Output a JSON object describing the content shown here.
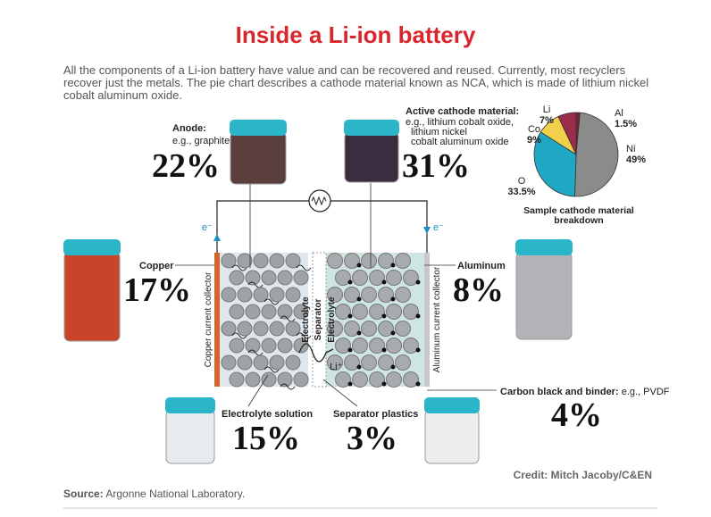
{
  "header": {
    "title": "Inside a Li-ion battery",
    "description": "All the components of a Li-ion battery have value and can be recovered and reused. Currently, most recyclers recover just the metals. The pie chart describes a cathode material known as NCA, which is made of lithium nickel cobalt aluminum oxide."
  },
  "components": {
    "anode": {
      "label": "Anode:",
      "detail": "e.g., graphite",
      "share": "22%"
    },
    "cathode": {
      "label": "Active cathode material:",
      "detail": [
        "e.g., lithium cobalt oxide,",
        "lithium nickel",
        "cobalt aluminum oxide"
      ],
      "share": "31%"
    },
    "copper": {
      "label": "Copper",
      "share": "17%"
    },
    "aluminum": {
      "label": "Aluminum",
      "share": "8%"
    },
    "carbon": {
      "label": "Carbon black and binder:",
      "detail": "e.g., PVDF",
      "share": "4%"
    },
    "electrolyte": {
      "label": "Electrolyte solution",
      "share": "15%"
    },
    "separator": {
      "label": "Separator plastics",
      "share": "3%"
    }
  },
  "diagram": {
    "electron_left": "e⁻",
    "electron_right": "e⁻",
    "copper_collector": "Copper current collector",
    "aluminum_collector": "Aluminum current collector",
    "electrolyte_left": "Electrolyte",
    "separator": "Separator",
    "electrolyte_right": "Electrolyte",
    "ion": "Li⁺"
  },
  "chart_data": {
    "type": "pie",
    "title": "Sample cathode material breakdown",
    "categories": [
      "Al",
      "Ni",
      "O",
      "Co",
      "Li"
    ],
    "values": [
      1.5,
      49,
      33.5,
      9,
      7
    ],
    "value_labels": [
      "1.5%",
      "49%",
      "33.5%",
      "9%",
      "7%"
    ],
    "colors": [
      "#7a2235",
      "#8a8c8c",
      "#1fa7c4",
      "#f2d04b",
      "#9b2c4c"
    ]
  },
  "credit": "Credit: Mitch Jacoby/C&EN",
  "source": {
    "label": "Source:",
    "text": "Argonne National Laboratory."
  }
}
